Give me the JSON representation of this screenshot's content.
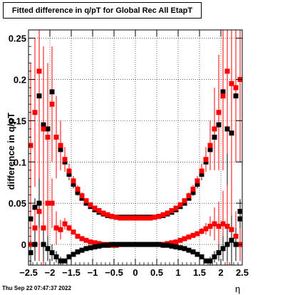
{
  "title": "Fitted difference in q/pT for Global Rec All EtapT",
  "timestamp": "Thu Sep 22 07:47:37 2022",
  "chart_data": {
    "type": "scatter",
    "title": "Fitted difference in q/pT for Global Rec All EtapT",
    "xlabel": "η",
    "ylabel": "difference in q/pT",
    "xlim": [
      -2.5,
      2.5
    ],
    "ylim": [
      -0.025,
      0.26
    ],
    "x_ticks": [
      -2.5,
      -2,
      -1.5,
      -1,
      -0.5,
      0,
      0.5,
      1,
      1.5,
      2,
      2.5
    ],
    "x_tick_labels": [
      "−2.5",
      "−2",
      "−1.5",
      "−1",
      "−0.5",
      "0",
      "0.5",
      "1",
      "1.5",
      "2",
      "2.5"
    ],
    "y_ticks": [
      0,
      0.05,
      0.1,
      0.15,
      0.2,
      0.25
    ],
    "y_tick_labels": [
      "0",
      "0.05",
      "0.1",
      "0.15",
      "0.2",
      "0.25"
    ],
    "grid": true,
    "x": [
      -2.45,
      -2.35,
      -2.25,
      -2.15,
      -2.05,
      -1.95,
      -1.85,
      -1.75,
      -1.65,
      -1.55,
      -1.45,
      -1.35,
      -1.25,
      -1.15,
      -1.05,
      -0.95,
      -0.85,
      -0.75,
      -0.65,
      -0.55,
      -0.45,
      -0.35,
      -0.25,
      -0.15,
      -0.05,
      0.05,
      0.15,
      0.25,
      0.35,
      0.45,
      0.55,
      0.65,
      0.75,
      0.85,
      0.95,
      1.05,
      1.15,
      1.25,
      1.35,
      1.45,
      1.55,
      1.65,
      1.75,
      1.85,
      1.95,
      2.05,
      2.15,
      2.25,
      2.35,
      2.45
    ],
    "series": [
      {
        "color": "#000000",
        "values": [
          0.031,
          0.045,
          0.18,
          0.145,
          0.14,
          0.185,
          0.13,
          0.115,
          0.1,
          0.085,
          0.073,
          0.063,
          0.056,
          0.05,
          0.046,
          0.042,
          0.039,
          0.037,
          0.035,
          0.034,
          0.033,
          0.033,
          0.033,
          0.033,
          0.033,
          0.033,
          0.033,
          0.033,
          0.033,
          0.033,
          0.034,
          0.035,
          0.037,
          0.039,
          0.042,
          0.046,
          0.05,
          0.056,
          0.063,
          0.073,
          0.085,
          0.1,
          0.115,
          0.13,
          0.145,
          0.185,
          0.14,
          0.135,
          0.18,
          0.031
        ],
        "errors": [
          0.014,
          0.011,
          0.1,
          0.08,
          0.06,
          0.045,
          0.028,
          0.018,
          0.01,
          0.007,
          0.005,
          0.004,
          0.003,
          0.002,
          0.002,
          0.002,
          0.002,
          0.002,
          0.002,
          0.002,
          0.002,
          0.002,
          0.002,
          0.002,
          0.002,
          0.002,
          0.002,
          0.002,
          0.002,
          0.002,
          0.002,
          0.002,
          0.002,
          0.002,
          0.002,
          0.002,
          0.002,
          0.003,
          0.004,
          0.005,
          0.007,
          0.01,
          0.018,
          0.028,
          0.045,
          0.06,
          0.08,
          0.1,
          0.011,
          0.014
        ]
      },
      {
        "color": "#ff0000",
        "values": [
          0.12,
          0.16,
          0.21,
          0.14,
          0.13,
          0.17,
          0.13,
          0.12,
          0.103,
          0.089,
          0.077,
          0.067,
          0.059,
          0.053,
          0.048,
          0.044,
          0.041,
          0.038,
          0.036,
          0.034,
          0.033,
          0.032,
          0.032,
          0.032,
          0.032,
          0.032,
          0.032,
          0.032,
          0.032,
          0.033,
          0.034,
          0.036,
          0.038,
          0.041,
          0.044,
          0.048,
          0.053,
          0.059,
          0.067,
          0.077,
          0.089,
          0.103,
          0.12,
          0.14,
          0.16,
          0.18,
          0.21,
          0.195,
          0.19,
          0.2
        ],
        "errors": [
          0.1,
          0.09,
          0.12,
          0.1,
          0.09,
          0.07,
          0.05,
          0.03,
          0.015,
          0.009,
          0.006,
          0.005,
          0.004,
          0.003,
          0.003,
          0.002,
          0.002,
          0.002,
          0.002,
          0.002,
          0.002,
          0.002,
          0.002,
          0.002,
          0.002,
          0.002,
          0.002,
          0.002,
          0.002,
          0.002,
          0.002,
          0.002,
          0.002,
          0.002,
          0.003,
          0.003,
          0.003,
          0.004,
          0.005,
          0.006,
          0.009,
          0.015,
          0.03,
          0.05,
          0.07,
          0.09,
          0.1,
          0.12,
          0.09,
          0.1
        ]
      },
      {
        "color": "#ff0000",
        "values": [
          0.0,
          0.02,
          0.04,
          0.02,
          0.05,
          0.05,
          0.02,
          0.018,
          0.025,
          0.02,
          0.015,
          0.01,
          0.007,
          0.005,
          0.003,
          0.002,
          0.001,
          0.0,
          0.0,
          -0.001,
          -0.001,
          0.0,
          0.0,
          0.0,
          0.0,
          0.0,
          0.0,
          0.0,
          0.0,
          0.0,
          0.0,
          0.0,
          0.001,
          0.002,
          0.003,
          0.005,
          0.007,
          0.009,
          0.011,
          0.013,
          0.016,
          0.019,
          0.022,
          0.025,
          0.022,
          0.025,
          0.022,
          0.018,
          0.01,
          0.0
        ],
        "errors": [
          0.02,
          0.03,
          0.06,
          0.05,
          0.04,
          0.03,
          0.02,
          0.012,
          0.007,
          0.004,
          0.003,
          0.002,
          0.002,
          0.002,
          0.002,
          0.002,
          0.002,
          0.002,
          0.002,
          0.002,
          0.002,
          0.002,
          0.002,
          0.002,
          0.002,
          0.002,
          0.002,
          0.002,
          0.002,
          0.002,
          0.002,
          0.002,
          0.002,
          0.002,
          0.002,
          0.002,
          0.002,
          0.002,
          0.002,
          0.003,
          0.004,
          0.007,
          0.012,
          0.02,
          0.03,
          0.04,
          0.05,
          0.06,
          0.03,
          0.02
        ]
      },
      {
        "color": "#000000",
        "values": [
          -0.01,
          0.0,
          0.05,
          0.0,
          -0.005,
          -0.01,
          -0.015,
          -0.02,
          -0.02,
          -0.015,
          -0.012,
          -0.009,
          -0.007,
          -0.005,
          -0.004,
          -0.003,
          -0.002,
          -0.001,
          -0.001,
          0.0,
          0.0,
          0.0,
          0.0,
          0.0,
          0.0,
          0.0,
          0.0,
          0.0,
          0.0,
          0.0,
          0.0,
          -0.001,
          -0.001,
          -0.002,
          -0.003,
          -0.004,
          -0.005,
          -0.007,
          -0.009,
          -0.012,
          -0.015,
          -0.02,
          -0.02,
          -0.015,
          -0.01,
          -0.005,
          0.0,
          0.005,
          0.0,
          0.04
        ],
        "errors": [
          0.015,
          0.02,
          0.03,
          0.02,
          0.015,
          0.01,
          0.007,
          0.005,
          0.003,
          0.002,
          0.002,
          0.002,
          0.002,
          0.002,
          0.002,
          0.002,
          0.002,
          0.002,
          0.002,
          0.002,
          0.002,
          0.002,
          0.002,
          0.002,
          0.002,
          0.002,
          0.002,
          0.002,
          0.002,
          0.002,
          0.002,
          0.002,
          0.002,
          0.002,
          0.002,
          0.002,
          0.002,
          0.002,
          0.002,
          0.002,
          0.002,
          0.003,
          0.005,
          0.007,
          0.01,
          0.015,
          0.02,
          0.03,
          0.02,
          0.015
        ]
      }
    ]
  }
}
